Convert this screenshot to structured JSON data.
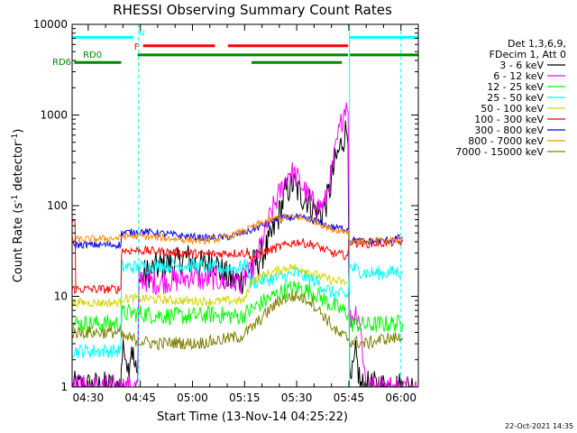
{
  "chart_data": {
    "type": "line",
    "title": "RHESSI Observing Summary Count Rates",
    "xlabel": "Start Time (13-Nov-14 04:25:22)",
    "ylabel_main": "Count Rate (s",
    "ylabel_sup1": "-1",
    "ylabel_mid": " detector",
    "ylabel_sup2": "-1",
    "ylabel_end": ")",
    "footer": "22-Oct-2021 14:35",
    "x_ticks": [
      {
        "t": 30,
        "label": "04:30"
      },
      {
        "t": 45,
        "label": "04:45"
      },
      {
        "t": 60,
        "label": "05:00"
      },
      {
        "t": 75,
        "label": "05:15"
      },
      {
        "t": 90,
        "label": "05:30"
      },
      {
        "t": 105,
        "label": "05:45"
      },
      {
        "t": 120,
        "label": "06:00"
      }
    ],
    "xlim_minutes": [
      25.37,
      125.0
    ],
    "ylim": [
      1,
      10000
    ],
    "y_scale": "log",
    "y_ticks": [
      {
        "v": 1,
        "label": "1"
      },
      {
        "v": 10,
        "label": "10"
      },
      {
        "v": 100,
        "label": "100"
      },
      {
        "v": 1000,
        "label": "1000"
      },
      {
        "v": 10000,
        "label": "10000"
      }
    ],
    "legend": {
      "header": [
        "Det 1,3,6,9,",
        "FDecim 1, Att 0"
      ],
      "entries": [
        {
          "label": "3 - 6 keV",
          "color": "#000000"
        },
        {
          "label": "6 - 12 keV",
          "color": "#ff00ff"
        },
        {
          "label": "12 - 25 keV",
          "color": "#00ff00"
        },
        {
          "label": "25 - 50 keV",
          "color": "#00ffff"
        },
        {
          "label": "50 - 100 keV",
          "color": "#d4d400"
        },
        {
          "label": "100 - 300 keV",
          "color": "#ff0000"
        },
        {
          "label": "300 - 800 keV",
          "color": "#0000ff"
        },
        {
          "label": "800 - 7000 keV",
          "color": "#ff8c00"
        },
        {
          "label": "7000 - 15000 keV",
          "color": "#808000"
        }
      ]
    },
    "flags": [
      {
        "label": "N",
        "color": "#00ffff",
        "segments": [
          [
            25.37,
            43.0
          ],
          [
            105.3,
            125.0
          ]
        ],
        "level": 7200
      },
      {
        "label": "F",
        "color": "#ff0000",
        "segments": [
          [
            45.8,
            66.5
          ],
          [
            70.2,
            104.8
          ]
        ],
        "level": 5800
      },
      {
        "label": "RD0",
        "color": "#008800",
        "segments": [
          [
            44.2,
            104.8
          ],
          [
            105.3,
            125.0
          ]
        ],
        "level": 4600
      },
      {
        "label": "RD6",
        "color": "#008800",
        "segments": [
          [
            26.0,
            39.5
          ],
          [
            77.0,
            103.0
          ]
        ],
        "level": 3800
      }
    ],
    "vlines": [
      {
        "t": 44.5,
        "color": "#00ffff",
        "style": "dashed"
      },
      {
        "t": 105.2,
        "color": "#00ffff",
        "style": "solid"
      },
      {
        "t": 120.0,
        "color": "#00ffff",
        "style": "dashed"
      }
    ],
    "series": [
      {
        "name": "3 - 6 keV",
        "color": "#000000",
        "noise": 0.18,
        "points": [
          [
            25.37,
            1.0
          ],
          [
            39.4,
            1.0
          ],
          [
            39.5,
            1.8
          ],
          [
            40.6,
            3.0
          ],
          [
            41.5,
            1.6
          ],
          [
            42.5,
            3.0
          ],
          [
            43.2,
            1.8
          ],
          [
            44.2,
            1.2
          ],
          [
            44.6,
            15
          ],
          [
            46,
            17
          ],
          [
            49,
            20
          ],
          [
            52,
            23
          ],
          [
            55,
            22
          ],
          [
            58,
            27
          ],
          [
            60,
            24
          ],
          [
            63,
            21
          ],
          [
            66,
            26
          ],
          [
            68,
            19
          ],
          [
            71,
            15
          ],
          [
            74,
            15
          ],
          [
            76,
            20
          ],
          [
            79,
            25
          ],
          [
            82,
            38
          ],
          [
            85,
            82
          ],
          [
            87,
            145
          ],
          [
            89,
            175
          ],
          [
            91,
            132
          ],
          [
            93,
            120
          ],
          [
            95,
            92
          ],
          [
            97,
            80
          ],
          [
            99,
            122
          ],
          [
            101,
            290
          ],
          [
            103,
            500
          ],
          [
            104,
            650
          ],
          [
            104.8,
            700
          ],
          [
            105.2,
            1.2
          ],
          [
            105.5,
            1.0
          ],
          [
            107,
            2.2
          ],
          [
            108.5,
            1.0
          ],
          [
            110,
            1.0
          ],
          [
            125,
            1.0
          ]
        ]
      },
      {
        "name": "6 - 12 keV",
        "color": "#ff00ff",
        "noise": 0.14,
        "points": [
          [
            25.37,
            1.0
          ],
          [
            44.2,
            1.0
          ],
          [
            44.6,
            16
          ],
          [
            47,
            15
          ],
          [
            50,
            14
          ],
          [
            53,
            15
          ],
          [
            56,
            15
          ],
          [
            60,
            17
          ],
          [
            63,
            15
          ],
          [
            66,
            16
          ],
          [
            70,
            14
          ],
          [
            74,
            15
          ],
          [
            77,
            18
          ],
          [
            80,
            40
          ],
          [
            83,
            90
          ],
          [
            86,
            165
          ],
          [
            88,
            245
          ],
          [
            90,
            205
          ],
          [
            92,
            155
          ],
          [
            94,
            112
          ],
          [
            96,
            98
          ],
          [
            98,
            102
          ],
          [
            100,
            230
          ],
          [
            102,
            600
          ],
          [
            104,
            1300
          ],
          [
            104.8,
            1400
          ],
          [
            105.2,
            5.5
          ],
          [
            107,
            6.8
          ],
          [
            108,
            6.0
          ],
          [
            110,
            1.0
          ],
          [
            125,
            1.0
          ]
        ]
      },
      {
        "name": "12 - 25 keV",
        "color": "#00ff00",
        "noise": 0.1,
        "points": [
          [
            25.37,
            5.0
          ],
          [
            39.5,
            5.0
          ],
          [
            39.8,
            6.5
          ],
          [
            44,
            6.5
          ],
          [
            50,
            6.2
          ],
          [
            58,
            6.0
          ],
          [
            66,
            6.3
          ],
          [
            74,
            6.0
          ],
          [
            80,
            8.5
          ],
          [
            85,
            11
          ],
          [
            90,
            12.5
          ],
          [
            95,
            11
          ],
          [
            100,
            8.0
          ],
          [
            104.8,
            6.5
          ],
          [
            105.3,
            5.0
          ],
          [
            110,
            4.8
          ],
          [
            118,
            5.0
          ],
          [
            120.5,
            5.0
          ]
        ]
      },
      {
        "name": "25 - 50 keV",
        "color": "#00ffff",
        "noise": 0.08,
        "points": [
          [
            25.37,
            2.5
          ],
          [
            39.4,
            2.5
          ],
          [
            39.6,
            21
          ],
          [
            45,
            21
          ],
          [
            52,
            22
          ],
          [
            58,
            22
          ],
          [
            64,
            21
          ],
          [
            70,
            20
          ],
          [
            74,
            21
          ],
          [
            76,
            22.5
          ],
          [
            76.5,
            14
          ],
          [
            80,
            15
          ],
          [
            85,
            16
          ],
          [
            90,
            18
          ],
          [
            95,
            15
          ],
          [
            100,
            11
          ],
          [
            104.8,
            10
          ],
          [
            105.2,
            21
          ],
          [
            110,
            18
          ],
          [
            115,
            18
          ],
          [
            120.5,
            19
          ]
        ]
      },
      {
        "name": "50 - 100 keV",
        "color": "#d4d400",
        "noise": 0.05,
        "points": [
          [
            25.37,
            8.5
          ],
          [
            39.4,
            8.5
          ],
          [
            39.6,
            9.5
          ],
          [
            45,
            9.5
          ],
          [
            55,
            9.0
          ],
          [
            65,
            8.8
          ],
          [
            75,
            9.0
          ],
          [
            77,
            15
          ],
          [
            82,
            18
          ],
          [
            88,
            21
          ],
          [
            92,
            20
          ],
          [
            96,
            17
          ],
          [
            100,
            15
          ],
          [
            104.8,
            14
          ]
        ]
      },
      {
        "name": "100 - 300 keV",
        "color": "#ff0000",
        "noise": 0.05,
        "points": [
          [
            25.37,
            12
          ],
          [
            39.4,
            12
          ],
          [
            39.6,
            32
          ],
          [
            45,
            32
          ],
          [
            52,
            31
          ],
          [
            58,
            30
          ],
          [
            64,
            29
          ],
          [
            70,
            30
          ],
          [
            75,
            30
          ],
          [
            76,
            32
          ],
          [
            76.5,
            26
          ],
          [
            80,
            30
          ],
          [
            85,
            35
          ],
          [
            90,
            40
          ],
          [
            95,
            37
          ],
          [
            100,
            30
          ],
          [
            104.8,
            28
          ],
          [
            105.2,
            40
          ],
          [
            110,
            38
          ],
          [
            115,
            39
          ],
          [
            120.5,
            40
          ]
        ]
      },
      {
        "name": "300 - 800 keV",
        "color": "#0000ff",
        "noise": 0.04,
        "points": [
          [
            25.37,
            37
          ],
          [
            39.4,
            37
          ],
          [
            39.6,
            50
          ],
          [
            45,
            52
          ],
          [
            52,
            49
          ],
          [
            58,
            46
          ],
          [
            64,
            44
          ],
          [
            70,
            45
          ],
          [
            76,
            52
          ],
          [
            80,
            60
          ],
          [
            85,
            72
          ],
          [
            90,
            75
          ],
          [
            95,
            68
          ],
          [
            100,
            58
          ],
          [
            104.8,
            55
          ],
          [
            105.2,
            42
          ],
          [
            110,
            40
          ],
          [
            115,
            41
          ],
          [
            120.5,
            45
          ]
        ]
      },
      {
        "name": "800 - 7000 keV",
        "color": "#ff8c00",
        "noise": 0.04,
        "points": [
          [
            25.37,
            42
          ],
          [
            39.4,
            44
          ],
          [
            39.6,
            46
          ],
          [
            45,
            46
          ],
          [
            52,
            44
          ],
          [
            58,
            42
          ],
          [
            64,
            41
          ],
          [
            70,
            45
          ],
          [
            76,
            55
          ],
          [
            80,
            65
          ],
          [
            85,
            73
          ],
          [
            90,
            75
          ],
          [
            95,
            68
          ],
          [
            100,
            55
          ],
          [
            104.8,
            52
          ],
          [
            105.2,
            41
          ],
          [
            110,
            40
          ],
          [
            115,
            41
          ],
          [
            120.5,
            42
          ]
        ]
      },
      {
        "name": "7000 - 15000 keV",
        "color": "#808000",
        "noise": 0.07,
        "points": [
          [
            25.37,
            4.0
          ],
          [
            39.4,
            4.0
          ],
          [
            39.6,
            3.6
          ],
          [
            45,
            3.2
          ],
          [
            50,
            3.0
          ],
          [
            55,
            3.1
          ],
          [
            60,
            3.0
          ],
          [
            66,
            3.2
          ],
          [
            70,
            3.4
          ],
          [
            74,
            3.6
          ],
          [
            78,
            4.8
          ],
          [
            82,
            7.0
          ],
          [
            86,
            9.5
          ],
          [
            90,
            10
          ],
          [
            94,
            9
          ],
          [
            98,
            6
          ],
          [
            102,
            3.8
          ],
          [
            104.8,
            3.5
          ],
          [
            105.2,
            3.2
          ],
          [
            110,
            3.0
          ],
          [
            115,
            3.4
          ],
          [
            120.5,
            3.5
          ]
        ]
      },
      {
        "name": "100 - 300 keV",
        "color": "#ff0000",
        "noise": 0.03,
        "points": [
          [
            25.37,
            70
          ],
          [
            26.2,
            70
          ],
          [
            26.4,
            12
          ]
        ]
      }
    ]
  }
}
